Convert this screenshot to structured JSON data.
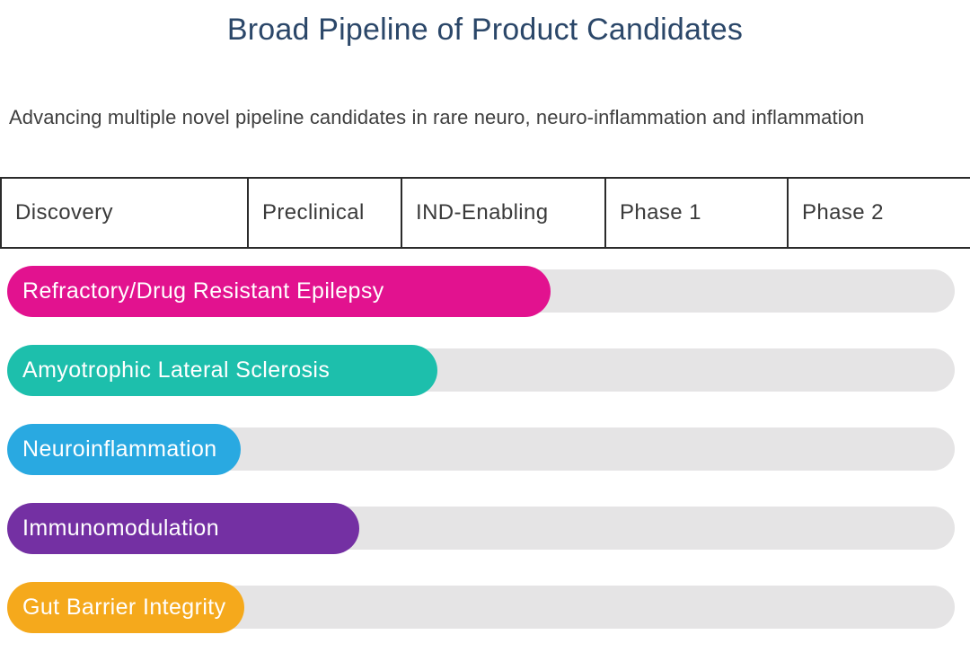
{
  "page": {
    "title": "Broad Pipeline of Product Candidates",
    "subtitle": "Advancing multiple novel pipeline candidates in rare neuro, neuro-inflammation and inflammation"
  },
  "colors": {
    "title_text": "#2b4769",
    "body_text": "#3f3f3f",
    "table_border": "#2b2b2b",
    "track_gray": "#e5e4e5"
  },
  "chart_data": {
    "type": "bar",
    "title": "Broad Pipeline of Product Candidates",
    "subtitle": "Advancing multiple novel pipeline candidates in rare neuro, neuro-inflammation and inflammation",
    "orientation": "horizontal",
    "stages": [
      "Discovery",
      "Preclinical",
      "IND-Enabling",
      "Phase 1",
      "Phase 2"
    ],
    "track_color": "#e5e4e5",
    "rows": [
      {
        "label": "Refractory/Drug Resistant Epilepsy",
        "color": "#e2128f",
        "progress_pct": 57.3,
        "stage_reached": "IND-Enabling"
      },
      {
        "label": "Amyotrophic Lateral Sclerosis",
        "color": "#1dbfac",
        "progress_pct": 45.4,
        "stage_reached": "IND-Enabling"
      },
      {
        "label": "Neuroinflammation",
        "color": "#29a9e1",
        "progress_pct": 24.6,
        "stage_reached": "Discovery"
      },
      {
        "label": "Immunomodulation",
        "color": "#7430a3",
        "progress_pct": 37.2,
        "stage_reached": "Preclinical"
      },
      {
        "label": "Gut Barrier Integrity",
        "color": "#f5a91c",
        "progress_pct": 25.0,
        "stage_reached": "Discovery"
      }
    ]
  }
}
